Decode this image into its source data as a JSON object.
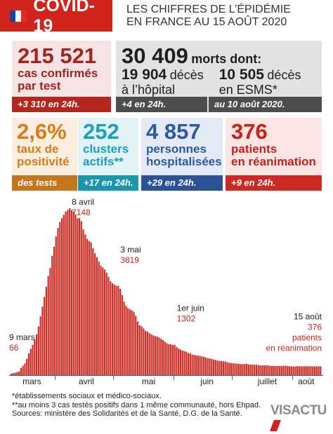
{
  "header": {
    "badge": "COVID-19",
    "title": [
      "LES CHIFFRES DE L’ÉPIDÉMIE",
      "EN FRANCE AU 15 AOÛT 2020"
    ]
  },
  "cases": {
    "number": "215 521",
    "label": [
      "cas confirmés",
      "par test"
    ],
    "footer": "+3 310 en 24h."
  },
  "deaths": {
    "number": "30 409",
    "suffix": "morts dont:",
    "items": [
      {
        "number": "19 904",
        "word": "décès",
        "sub": "à l’hôpital"
      },
      {
        "number": "10 505",
        "word": "décès",
        "sub": "en ESMS*"
      }
    ],
    "footer": "+4 en 24h.",
    "footer_right": "au 10 août 2020."
  },
  "cards": [
    {
      "number": "2,6%",
      "label": [
        "taux de",
        "positivité"
      ],
      "footer": "des tests"
    },
    {
      "number": "252",
      "label": [
        "clusters",
        "actifs**"
      ],
      "footer": "+17 en 24h."
    },
    {
      "number": "4 857",
      "label": [
        "personnes",
        "hospitalisées"
      ],
      "footer": "+29 en 24h."
    },
    {
      "number": "376",
      "label": [
        "patients",
        "en réanimation"
      ],
      "footer": "+9 en 24h."
    }
  ],
  "chart_data": {
    "type": "bar",
    "color": "#cf2a22",
    "values": [
      66,
      86,
      105,
      129,
      154,
      300,
      400,
      499,
      699,
      931,
      1122,
      1297,
      1525,
      1746,
      2082,
      2516,
      2935,
      3351,
      3787,
      4236,
      4592,
      5107,
      5496,
      5940,
      6305,
      6556,
      6723,
      6863,
      7004,
      7072,
      7148,
      7066,
      7004,
      6883,
      6714,
      6730,
      6599,
      6248,
      6027,
      5833,
      5744,
      5683,
      5433,
      5218,
      5053,
      4870,
      4682,
      4608,
      4526,
      4387,
      4207,
      4019,
      3930,
      3878,
      3827,
      3819,
      3696,
      3430,
      3147,
      2961,
      2868,
      2812,
      2776,
      2712,
      2542,
      2299,
      2132,
      2087,
      1998,
      1894,
      1859,
      1794,
      1745,
      1701,
      1665,
      1655,
      1609,
      1555,
      1501,
      1429,
      1361,
      1325,
      1319,
      1288,
      1302,
      1202,
      1137,
      1094,
      1053,
      1024,
      1001,
      944,
      925,
      881,
      869,
      839,
      837,
      822,
      799,
      784,
      750,
      725,
      713,
      696,
      667,
      651,
      626,
      608,
      599,
      586,
      586,
      550,
      531,
      515,
      508,
      497,
      491,
      479,
      473,
      470,
      473,
      484,
      459,
      451,
      450,
      445,
      444,
      430,
      420,
      419,
      412,
      421,
      417,
      395,
      393,
      388,
      389,
      387,
      386,
      391,
      395,
      404,
      392,
      384,
      371,
      371,
      372,
      384,
      383,
      377,
      378,
      380,
      381,
      382,
      380,
      374,
      379,
      374,
      378,
      376
    ],
    "categories": [
      null,
      null,
      null,
      null,
      null,
      null,
      null,
      null,
      null,
      null,
      null,
      "mars",
      null,
      null,
      null,
      null,
      null,
      null,
      null,
      null,
      null,
      null,
      null,
      null,
      null,
      null,
      null,
      null,
      null,
      null,
      null,
      null,
      null,
      null,
      null,
      null,
      null,
      null,
      null,
      "avril",
      null,
      null,
      null,
      null,
      null,
      null,
      null,
      null,
      null,
      null,
      null,
      null,
      null,
      null,
      null,
      null,
      null,
      null,
      null,
      null,
      null,
      null,
      null,
      null,
      null,
      null,
      null,
      null,
      null,
      null,
      null,
      "mai",
      null,
      null,
      null,
      null,
      null,
      null,
      null,
      null,
      null,
      null,
      null,
      null,
      null,
      null,
      null,
      null,
      null,
      null,
      null,
      null,
      null,
      null,
      null,
      null,
      null,
      null,
      null,
      null,
      null,
      "juin",
      null,
      null,
      null,
      null,
      null,
      null,
      null,
      null,
      null,
      null,
      null,
      null,
      null,
      null,
      null,
      null,
      null,
      null,
      null,
      null,
      null,
      null,
      null,
      null,
      null,
      null,
      null,
      null,
      null,
      null,
      "juillet",
      null,
      null,
      null,
      null,
      null,
      null,
      null,
      null,
      null,
      null,
      null,
      null,
      null,
      null,
      null,
      null,
      null,
      null,
      null,
      "août",
      null,
      null,
      null,
      null,
      null,
      null,
      null
    ],
    "point_labels": [
      "9 mars",
      null,
      null,
      null,
      null,
      null,
      null,
      null,
      null,
      null,
      null,
      null,
      null,
      null,
      null,
      null,
      null,
      null,
      null,
      null,
      null,
      null,
      null,
      null,
      null,
      null,
      null,
      null,
      null,
      null,
      "8 avril",
      null,
      null,
      null,
      null,
      null,
      null,
      null,
      null,
      null,
      null,
      null,
      null,
      null,
      null,
      null,
      null,
      null,
      null,
      null,
      null,
      null,
      null,
      null,
      null,
      "3 mai",
      null,
      null,
      null,
      null,
      null,
      null,
      null,
      null,
      null,
      null,
      null,
      null,
      null,
      null,
      null,
      null,
      null,
      null,
      null,
      null,
      null,
      null,
      null,
      null,
      null,
      null,
      null,
      null,
      "1er juin",
      null,
      null,
      null,
      null,
      null,
      null,
      null,
      null,
      null,
      null,
      null,
      null,
      null,
      null,
      null,
      null,
      null,
      null,
      null,
      null,
      null,
      null,
      null,
      null,
      null,
      null,
      null,
      null,
      null,
      null,
      null,
      null,
      null,
      null,
      null,
      null,
      null,
      null,
      null,
      null,
      null,
      null,
      null,
      null,
      null,
      null,
      null,
      null,
      null,
      null,
      null,
      null,
      null,
      null,
      null,
      null,
      null,
      null,
      null,
      null,
      null,
      null,
      null,
      null,
      null,
      null,
      null,
      null,
      null,
      null,
      null,
      null,
      null,
      null,
      "15 août"
    ],
    "note_lines": [
      "patients",
      "en réanimation"
    ]
  },
  "footnotes": [
    "*établissements sociaux et médico-sociaux.",
    "**au moins 3 cas testés positifs dans 1 même communauté, hors Ehpad.",
    "Sources: ministère des Solidarités et de la Santé, D.G. de la Santé."
  ],
  "logo": "VISACTU"
}
